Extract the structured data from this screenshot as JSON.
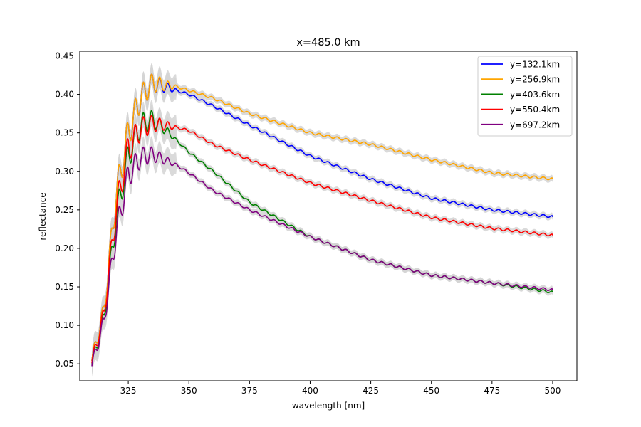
{
  "chart_data": {
    "type": "line",
    "title": "x=485.0 km",
    "xlabel": "wavelength [nm]",
    "ylabel": "reflectance",
    "xlim": [
      305,
      510
    ],
    "ylim": [
      0.028,
      0.456
    ],
    "xticks": [
      325,
      350,
      375,
      400,
      425,
      450,
      475,
      500
    ],
    "xtick_labels": [
      "325",
      "350",
      "375",
      "400",
      "425",
      "450",
      "475",
      "500"
    ],
    "yticks": [
      0.05,
      0.1,
      0.15,
      0.2,
      0.25,
      0.3,
      0.35,
      0.4,
      0.45
    ],
    "ytick_labels": [
      "0.05",
      "0.10",
      "0.15",
      "0.20",
      "0.25",
      "0.30",
      "0.35",
      "0.40",
      "0.45"
    ],
    "grid": false,
    "legend_position": "top-right",
    "uncertainty_band_color": "#d3d3d3",
    "series": [
      {
        "name": "y=132.1km",
        "color": "#0000ff",
        "x": [
          310,
          315,
          320,
          325,
          330,
          335,
          340,
          345,
          350,
          360,
          375,
          400,
          425,
          450,
          475,
          500
        ],
        "y": [
          0.055,
          0.12,
          0.27,
          0.35,
          0.395,
          0.415,
          0.41,
          0.405,
          0.4,
          0.385,
          0.36,
          0.32,
          0.29,
          0.265,
          0.25,
          0.241
        ]
      },
      {
        "name": "y=256.9km",
        "color": "#ffa500",
        "x": [
          310,
          315,
          320,
          325,
          330,
          335,
          340,
          345,
          350,
          360,
          375,
          400,
          425,
          450,
          475,
          500
        ],
        "y": [
          0.055,
          0.12,
          0.27,
          0.35,
          0.395,
          0.415,
          0.412,
          0.41,
          0.405,
          0.395,
          0.375,
          0.35,
          0.335,
          0.315,
          0.298,
          0.29
        ]
      },
      {
        "name": "y=403.6km",
        "color": "#008000",
        "x": [
          310,
          315,
          320,
          325,
          330,
          335,
          340,
          345,
          350,
          360,
          375,
          400,
          425,
          450,
          475,
          500
        ],
        "y": [
          0.05,
          0.11,
          0.24,
          0.32,
          0.36,
          0.368,
          0.355,
          0.34,
          0.325,
          0.3,
          0.26,
          0.215,
          0.185,
          0.165,
          0.155,
          0.143
        ]
      },
      {
        "name": "y=550.4km",
        "color": "#ff0000",
        "x": [
          310,
          315,
          320,
          325,
          330,
          335,
          340,
          345,
          350,
          360,
          375,
          400,
          425,
          450,
          475,
          500
        ],
        "y": [
          0.052,
          0.115,
          0.25,
          0.33,
          0.355,
          0.362,
          0.36,
          0.357,
          0.353,
          0.335,
          0.315,
          0.285,
          0.262,
          0.24,
          0.226,
          0.217
        ]
      },
      {
        "name": "y=697.2km",
        "color": "#800080",
        "x": [
          310,
          315,
          320,
          325,
          330,
          335,
          340,
          345,
          350,
          360,
          375,
          400,
          425,
          450,
          475,
          500
        ],
        "y": [
          0.048,
          0.105,
          0.22,
          0.295,
          0.318,
          0.322,
          0.315,
          0.308,
          0.298,
          0.275,
          0.25,
          0.215,
          0.185,
          0.165,
          0.155,
          0.146
        ]
      }
    ]
  }
}
